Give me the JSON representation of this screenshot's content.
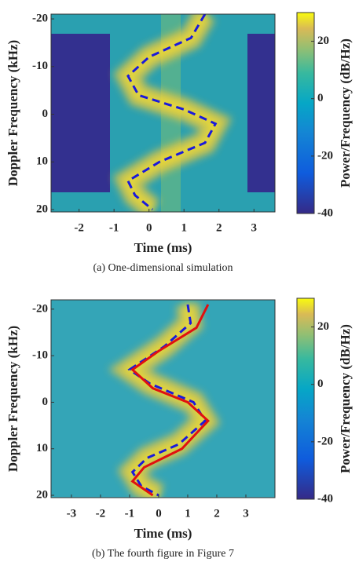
{
  "chart_data": [
    {
      "type": "spectrogram",
      "xlabel": "Time (ms)",
      "ylabel": "Doppler Frequency (kHz)",
      "colorbar_label": "Power/Frequency (dB/Hz)",
      "caption": "(a) One-dimensional simulation",
      "xlim": [
        -2.8,
        3.6
      ],
      "xticks": [
        -2,
        -1,
        0,
        1,
        2,
        3
      ],
      "ylim": [
        -21,
        20.5
      ],
      "yticks": [
        -20,
        -10,
        0,
        10,
        20
      ],
      "y_reversed": true,
      "clim": [
        -40,
        30
      ],
      "cticks": [
        -40,
        -20,
        0,
        20
      ],
      "series": [
        {
          "color": "#1a1adb",
          "dash": true,
          "x": [
            1.6,
            1.2,
            0,
            -0.6,
            -0.3,
            1,
            1.9,
            1.6,
            0.3,
            -0.6,
            -0.4,
            0.1
          ],
          "values": [
            -21,
            -16,
            -12,
            -8,
            -4,
            -1,
            2,
            6,
            10,
            14,
            17,
            20
          ]
        }
      ]
    },
    {
      "type": "spectrogram",
      "xlabel": "Time (ms)",
      "ylabel": "Doppler Frequency (kHz)",
      "colorbar_label": "Power/Frequency (dB/Hz)",
      "caption": "(b) The fourth figure in Figure 7",
      "xlim": [
        -3.7,
        4
      ],
      "xticks": [
        -3,
        -2,
        -1,
        0,
        1,
        2,
        3
      ],
      "ylim": [
        -22,
        20.5
      ],
      "yticks": [
        -20,
        -10,
        0,
        10,
        20
      ],
      "y_reversed": true,
      "clim": [
        -40,
        30
      ],
      "cticks": [
        -40,
        -20,
        0,
        20
      ],
      "series": [
        {
          "color": "#1a1adb",
          "dash": true,
          "x": [
            1,
            1.1,
            0.2,
            -1,
            -0.3,
            1.2,
            1.6,
            0.7,
            -0.4,
            -0.9,
            -0.6,
            0
          ],
          "values": [
            -21,
            -17,
            -12,
            -7,
            -4,
            0,
            4,
            9,
            12,
            15,
            18,
            20
          ]
        },
        {
          "color": "#e01010",
          "dash": false,
          "x": [
            1.7,
            1.3,
            0,
            -0.9,
            -0.2,
            1,
            1.7,
            0.8,
            -0.5,
            -0.9,
            -0.2
          ],
          "values": [
            -21,
            -16,
            -11,
            -7,
            -3,
            0,
            4,
            10,
            14,
            17,
            20
          ]
        }
      ]
    }
  ]
}
